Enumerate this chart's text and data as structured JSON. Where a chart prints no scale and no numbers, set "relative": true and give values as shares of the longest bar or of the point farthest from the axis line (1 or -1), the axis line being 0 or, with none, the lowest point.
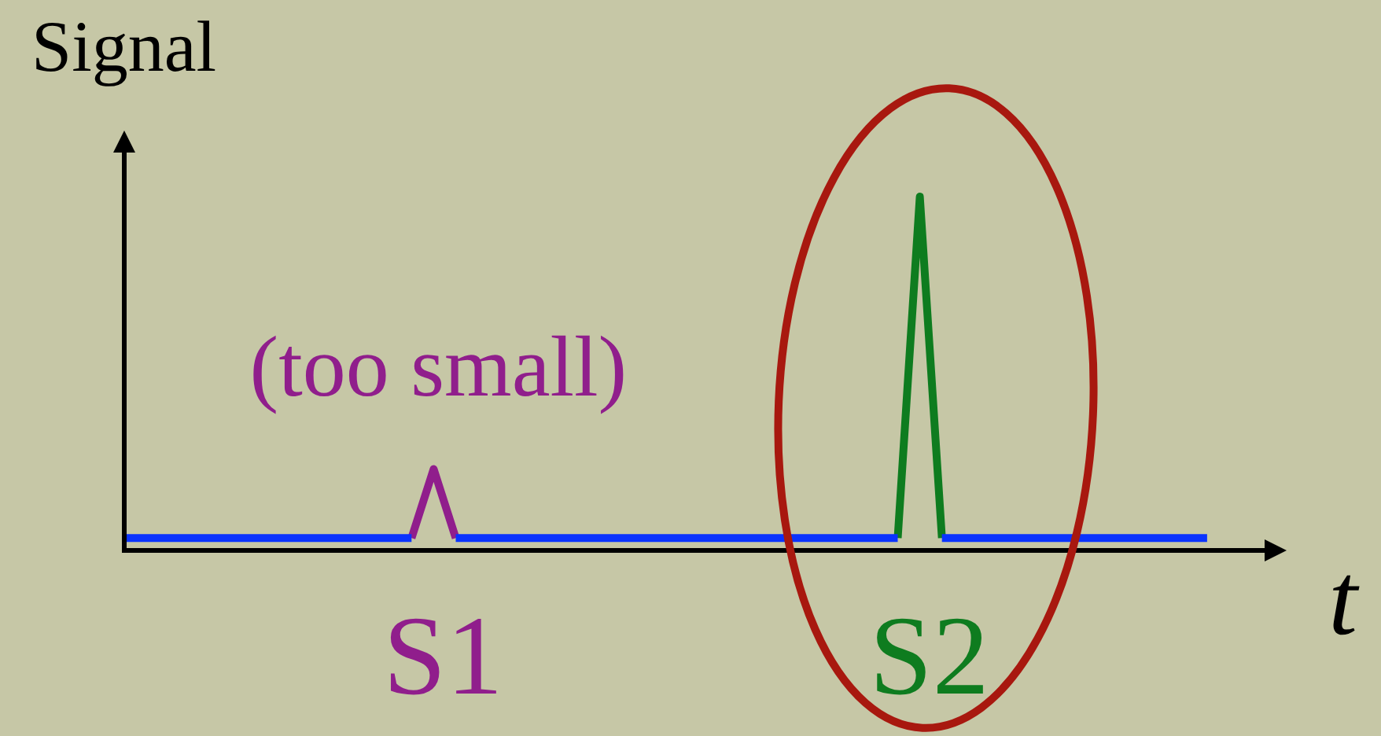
{
  "chart_data": {
    "type": "line",
    "relative": true,
    "xlabel": "t",
    "ylabel": "Signal",
    "line_style": "solid",
    "categories": [
      null,
      null,
      null,
      null,
      null,
      null,
      null,
      null,
      null,
      null,
      null,
      null,
      null,
      null,
      null,
      null,
      null,
      null,
      null,
      null,
      null,
      null,
      null,
      null,
      null,
      null,
      null,
      null,
      null,
      null,
      null,
      null,
      null,
      null,
      null,
      null,
      null,
      null,
      null,
      null,
      null,
      null,
      null,
      null,
      null,
      null,
      null,
      null,
      null,
      null,
      null,
      null,
      null
    ],
    "series": [
      {
        "color": "#0a33ff",
        "values": [
          0.035,
          0.035,
          0.035,
          0.035,
          0.035,
          0.035,
          0.035,
          0.035,
          0.035,
          0.035,
          0.035,
          0.035,
          0.035,
          0.035,
          null,
          0.035,
          0.035,
          0.035,
          0.035,
          0.035,
          0.035,
          0.035,
          0.035,
          0.035,
          0.035,
          0.035,
          0.035,
          0.035,
          0.035,
          0.035,
          0.035,
          0.035,
          0.035,
          0.035,
          0.035,
          0.035,
          null,
          0.035,
          0.035,
          0.035,
          0.035,
          0.035,
          0.035,
          0.035,
          0.035,
          0.035,
          0.035,
          0.035,
          0.035,
          0.035,
          null,
          null,
          null
        ]
      },
      {
        "name": "S1",
        "color": "#901e8c",
        "values": [
          null,
          null,
          null,
          null,
          null,
          null,
          null,
          null,
          null,
          null,
          null,
          null,
          null,
          0.035,
          0.23,
          0.035,
          null,
          null,
          null,
          null,
          null,
          null,
          null,
          null,
          null,
          null,
          null,
          null,
          null,
          null,
          null,
          null,
          null,
          null,
          null,
          null,
          null,
          null,
          null,
          null,
          null,
          null,
          null,
          null,
          null,
          null,
          null,
          null,
          null,
          null,
          null,
          null,
          null
        ]
      },
      {
        "name": "S2",
        "color": "#0e7c1f",
        "values": [
          null,
          null,
          null,
          null,
          null,
          null,
          null,
          null,
          null,
          null,
          null,
          null,
          null,
          null,
          null,
          null,
          null,
          null,
          null,
          null,
          null,
          null,
          null,
          null,
          null,
          null,
          null,
          null,
          null,
          null,
          null,
          null,
          null,
          null,
          null,
          0.035,
          1,
          0.035,
          null,
          null,
          null,
          null,
          null,
          null,
          null,
          null,
          null,
          null,
          null,
          null,
          null,
          null,
          null
        ]
      }
    ],
    "annotations": [
      "(too small)"
    ]
  }
}
